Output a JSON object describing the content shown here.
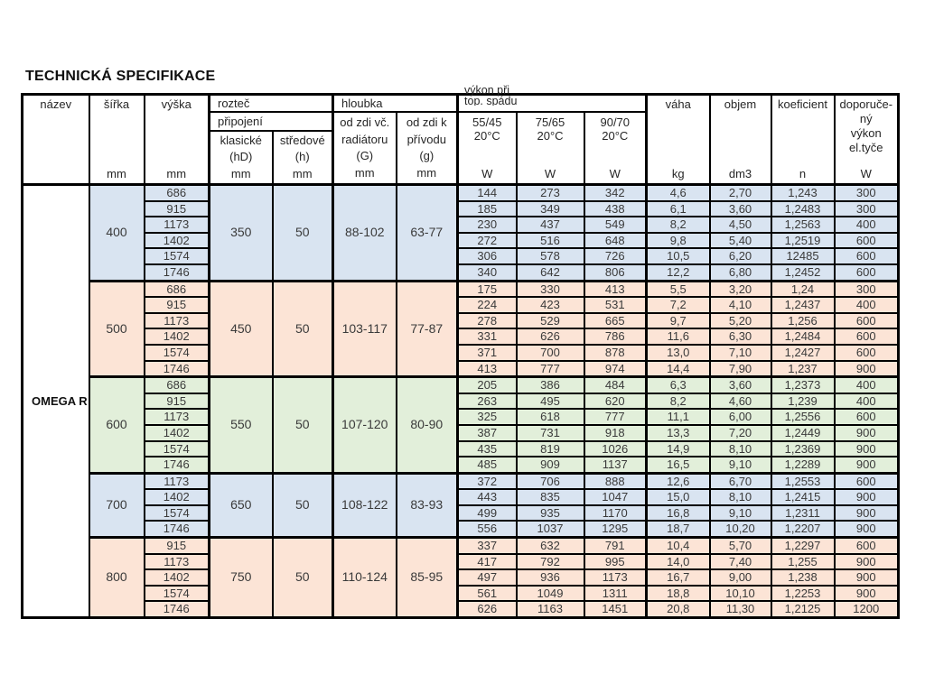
{
  "page": {
    "title": "TECHNICKÁ SPECIFIKACE"
  },
  "colors": {
    "blue": "#d9e4f1",
    "peach": "#fce4d6",
    "green": "#e2efda",
    "border": "#000000"
  },
  "table": {
    "product_name": "OMEGA R",
    "header": {
      "nazev": {
        "label": "název"
      },
      "sirka": {
        "label": "šířka",
        "unit": "mm"
      },
      "vyska": {
        "label": "výška",
        "unit": "mm"
      },
      "roztec": "rozteč",
      "pripojeni": "připojení",
      "klasicke": {
        "l1": "klasické",
        "l2": "(hD)",
        "unit": "mm"
      },
      "stredove": {
        "l1": "středové",
        "l2": "(h)",
        "unit": "mm"
      },
      "hloubka": "hloubka",
      "od_zdi_vc": {
        "l1": "od zdi  vč.",
        "l2": "radiátoru",
        "l3": "(G)",
        "unit": "mm"
      },
      "od_zdi_k": {
        "l1": "od zdi  k",
        "l2": "přívodu",
        "l3": "(g)",
        "unit": "mm"
      },
      "vykon": {
        "l1": "výkon při",
        "l2": "top. spádu"
      },
      "grad1": {
        "l1": "55/45",
        "l2": "20°C",
        "unit": "W"
      },
      "grad2": {
        "l1": "75/65",
        "l2": "20°C",
        "unit": "W"
      },
      "grad3": {
        "l1": "90/70",
        "l2": "20°C",
        "unit": "W"
      },
      "vaha": {
        "label": "váha",
        "unit": "kg"
      },
      "objem": {
        "label": "objem",
        "unit": "dm3"
      },
      "koeficient": {
        "label": "koeficient",
        "unit": "n"
      },
      "doporuceny": {
        "l1": "doporuče-",
        "l2": "ný",
        "l3": "výkon",
        "l4": "el.tyče",
        "unit": "W"
      }
    },
    "groups": [
      {
        "sirka": "400",
        "color": "blue",
        "roztec": "350",
        "stredove": "50",
        "hloubka_g": "88-102",
        "hloubka_k": "63-77",
        "rows": [
          [
            "686",
            "144",
            "273",
            "342",
            "4,6",
            "2,70",
            "1,243",
            "300"
          ],
          [
            "915",
            "185",
            "349",
            "438",
            "6,1",
            "3,60",
            "1,2483",
            "300"
          ],
          [
            "1173",
            "230",
            "437",
            "549",
            "8,2",
            "4,50",
            "1,2563",
            "400"
          ],
          [
            "1402",
            "272",
            "516",
            "648",
            "9,8",
            "5,40",
            "1,2519",
            "600"
          ],
          [
            "1574",
            "306",
            "578",
            "726",
            "10,5",
            "6,20",
            "12485",
            "600"
          ],
          [
            "1746",
            "340",
            "642",
            "806",
            "12,2",
            "6,80",
            "1,2452",
            "600"
          ]
        ]
      },
      {
        "sirka": "500",
        "color": "peach",
        "roztec": "450",
        "stredove": "50",
        "hloubka_g": "103-117",
        "hloubka_k": "77-87",
        "rows": [
          [
            "686",
            "175",
            "330",
            "413",
            "5,5",
            "3,20",
            "1,24",
            "300"
          ],
          [
            "915",
            "224",
            "423",
            "531",
            "7,2",
            "4,10",
            "1,2437",
            "400"
          ],
          [
            "1173",
            "278",
            "529",
            "665",
            "9,7",
            "5,20",
            "1,256",
            "600"
          ],
          [
            "1402",
            "331",
            "626",
            "786",
            "11,6",
            "6,30",
            "1,2484",
            "600"
          ],
          [
            "1574",
            "371",
            "700",
            "878",
            "13,0",
            "7,10",
            "1,2427",
            "600"
          ],
          [
            "1746",
            "413",
            "777",
            "974",
            "14,4",
            "7,90",
            "1,237",
            "900"
          ]
        ]
      },
      {
        "sirka": "600",
        "color": "green",
        "roztec": "550",
        "stredove": "50",
        "hloubka_g": "107-120",
        "hloubka_k": "80-90",
        "rows": [
          [
            "686",
            "205",
            "386",
            "484",
            "6,3",
            "3,60",
            "1,2373",
            "400"
          ],
          [
            "915",
            "263",
            "495",
            "620",
            "8,2",
            "4,60",
            "1,239",
            "400"
          ],
          [
            "1173",
            "325",
            "618",
            "777",
            "11,1",
            "6,00",
            "1,2556",
            "600"
          ],
          [
            "1402",
            "387",
            "731",
            "918",
            "13,3",
            "7,20",
            "1,2449",
            "900"
          ],
          [
            "1574",
            "435",
            "819",
            "1026",
            "14,9",
            "8,10",
            "1,2369",
            "900"
          ],
          [
            "1746",
            "485",
            "909",
            "1137",
            "16,5",
            "9,10",
            "1,2289",
            "900"
          ]
        ]
      },
      {
        "sirka": "700",
        "color": "blue",
        "roztec": "650",
        "stredove": "50",
        "hloubka_g": "108-122",
        "hloubka_k": "83-93",
        "rows": [
          [
            "1173",
            "372",
            "706",
            "888",
            "12,6",
            "6,70",
            "1,2553",
            "600"
          ],
          [
            "1402",
            "443",
            "835",
            "1047",
            "15,0",
            "8,10",
            "1,2415",
            "900"
          ],
          [
            "1574",
            "499",
            "935",
            "1170",
            "16,8",
            "9,10",
            "1,2311",
            "900"
          ],
          [
            "1746",
            "556",
            "1037",
            "1295",
            "18,7",
            "10,20",
            "1,2207",
            "900"
          ]
        ]
      },
      {
        "sirka": "800",
        "color": "peach",
        "roztec": "750",
        "stredove": "50",
        "hloubka_g": "110-124",
        "hloubka_k": "85-95",
        "rows": [
          [
            "915",
            "337",
            "632",
            "791",
            "10,4",
            "5,70",
            "1,2297",
            "600"
          ],
          [
            "1173",
            "417",
            "792",
            "995",
            "14,0",
            "7,40",
            "1,255",
            "900"
          ],
          [
            "1402",
            "497",
            "936",
            "1173",
            "16,7",
            "9,00",
            "1,238",
            "900"
          ],
          [
            "1574",
            "561",
            "1049",
            "1311",
            "18,8",
            "10,10",
            "1,2253",
            "900"
          ],
          [
            "1746",
            "626",
            "1163",
            "1451",
            "20,8",
            "11,30",
            "1,2125",
            "1200"
          ]
        ]
      }
    ]
  }
}
